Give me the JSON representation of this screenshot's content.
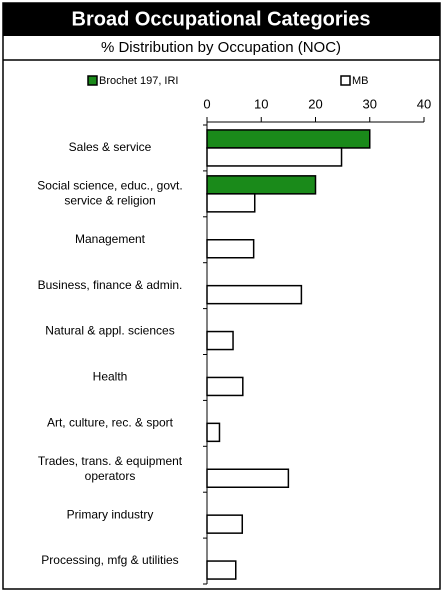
{
  "chart_data": {
    "type": "hbar",
    "title": "Broad Occupational Categories",
    "subtitle": "% Distribution by Occupation (NOC)",
    "categories": [
      "Sales & service",
      "Social science, educ., govt.\nservice & religion",
      "Management",
      "Business, finance & admin.",
      "Natural & appl. sciences",
      "Health",
      "Art, culture, rec. & sport",
      "Trades, trans. & equipment\noperators",
      "Primary industry",
      "Processing, mfg & utilities"
    ],
    "series": [
      {
        "name": "Brochet 197, IRI",
        "color": "#1a8a1a",
        "values": [
          30,
          20,
          null,
          null,
          null,
          null,
          null,
          null,
          null,
          null
        ]
      },
      {
        "name": "MB",
        "color": "#ffffff",
        "values": [
          24.8,
          8.8,
          8.6,
          17.4,
          4.8,
          6.6,
          2.3,
          15,
          6.5,
          5.3
        ]
      }
    ],
    "xlim": [
      0,
      40
    ],
    "xticks": [
      0,
      10,
      20,
      30,
      40
    ]
  }
}
